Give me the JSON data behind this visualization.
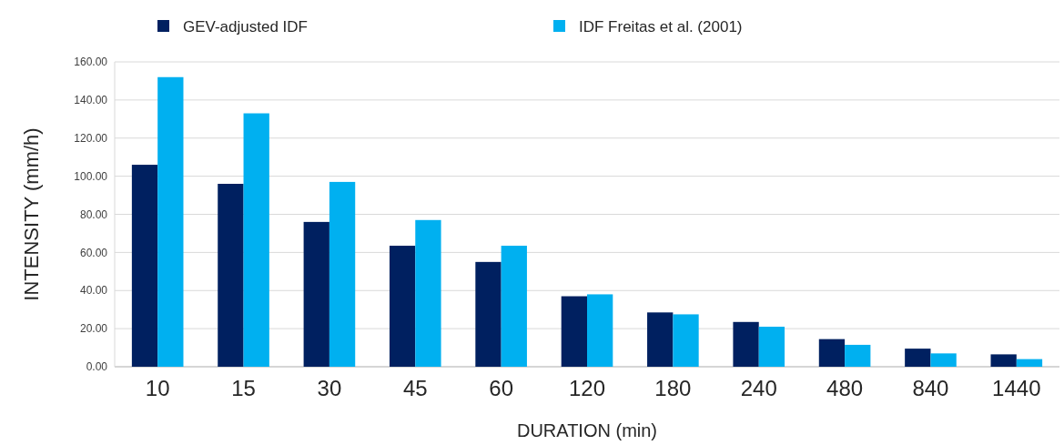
{
  "chart_data": {
    "type": "bar",
    "xlabel": "DURATION (min)",
    "ylabel": "INTENSITY (mm/h)",
    "categories": [
      "10",
      "15",
      "30",
      "45",
      "60",
      "120",
      "180",
      "240",
      "480",
      "840",
      "1440"
    ],
    "series": [
      {
        "name": "GEV-adjusted IDF",
        "color": "#002060",
        "values": [
          106,
          96,
          76,
          63.5,
          55,
          37,
          28.5,
          23.5,
          14.5,
          9.5,
          6.5
        ]
      },
      {
        "name": "IDF Freitas et al. (2001)",
        "color": "#00b0f0",
        "values": [
          152,
          133,
          97,
          77,
          63.5,
          38,
          27.5,
          21,
          11.5,
          7,
          4
        ]
      }
    ],
    "ylim": [
      0,
      160
    ],
    "yticks": [
      {
        "value": 0,
        "label": "0.00"
      },
      {
        "value": 20,
        "label": "20.00"
      },
      {
        "value": 40,
        "label": "40.00"
      },
      {
        "value": 60,
        "label": "60.00"
      },
      {
        "value": 80,
        "label": "80.00"
      },
      {
        "value": 100,
        "label": "100.00"
      },
      {
        "value": 120,
        "label": "120.00"
      },
      {
        "value": 140,
        "label": "140.00"
      },
      {
        "value": 160,
        "label": "160.00"
      }
    ],
    "grid": "y",
    "legend": "top"
  }
}
